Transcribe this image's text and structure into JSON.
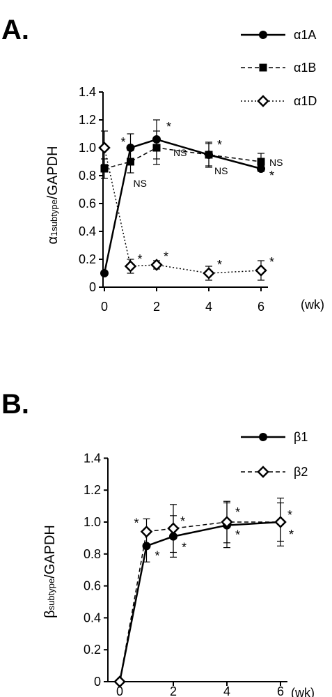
{
  "chart_data": [
    {
      "panel": "A.",
      "type": "line",
      "ylabel_main": "α",
      "ylabel_sub": "1subtype",
      "ylabel_rest": "/GAPDH",
      "xunit": "(wk)",
      "x": [
        0,
        1,
        2,
        4,
        6
      ],
      "xlabels": [
        "0",
        "2",
        "4",
        "6"
      ],
      "xticks": [
        0,
        2,
        4,
        6
      ],
      "yticks": [
        0,
        0.2,
        0.4,
        0.6,
        0.8,
        1.0,
        1.2,
        1.4
      ],
      "ytick_labels": [
        "0",
        "0.2",
        "0.4",
        "0.6",
        "0.8",
        "1.0",
        "1.2",
        "1.4"
      ],
      "ylim": [
        0,
        1.4
      ],
      "legend_position": "top-right",
      "series": [
        {
          "name": "α1A",
          "values": [
            0.1,
            1.0,
            1.06,
            0.95,
            0.85
          ],
          "errors": [
            0,
            0.1,
            0.14,
            0.09,
            0.02
          ],
          "marker": "circle-filled",
          "line": "solid",
          "color": "#000000",
          "annotations": [
            "",
            "*",
            "*",
            "*",
            "*"
          ]
        },
        {
          "name": "α1B",
          "values": [
            0.85,
            0.9,
            1.0,
            0.95,
            0.9
          ],
          "errors": [
            0.07,
            0.08,
            0.12,
            0.08,
            0.06
          ],
          "marker": "square-filled",
          "line": "dashed",
          "color": "#000000",
          "annotations": [
            "",
            "NS",
            "NS",
            "NS",
            "NS"
          ]
        },
        {
          "name": "α1D",
          "values": [
            1.0,
            0.15,
            0.16,
            0.1,
            0.12
          ],
          "errors": [
            0.12,
            0.05,
            0.03,
            0.05,
            0.07
          ],
          "marker": "diamond-open",
          "line": "dotted",
          "color": "#000000",
          "annotations": [
            "",
            "*",
            "*",
            "*",
            "*"
          ]
        }
      ]
    },
    {
      "panel": "B.",
      "type": "line",
      "ylabel_main": "β",
      "ylabel_sub": "subtype",
      "ylabel_rest": "/GAPDH",
      "xunit": "(wk)",
      "x": [
        0,
        1,
        2,
        4,
        6
      ],
      "xlabels": [
        "0",
        "2",
        "4",
        "6"
      ],
      "xticks": [
        0,
        2,
        4,
        6
      ],
      "yticks": [
        0,
        0.2,
        0.4,
        0.6,
        0.8,
        1.0,
        1.2,
        1.4
      ],
      "ytick_labels": [
        "0",
        "0.2",
        "0.4",
        "0.6",
        "0.8",
        "1.0",
        "1.2",
        "1.4"
      ],
      "ylim": [
        0,
        1.4
      ],
      "legend_position": "top-right",
      "series": [
        {
          "name": "β1",
          "values": [
            0,
            0.85,
            0.91,
            0.98,
            1.0
          ],
          "errors": [
            0,
            0.1,
            0.13,
            0.14,
            0.15
          ],
          "marker": "circle-filled",
          "line": "solid",
          "color": "#000000",
          "annotations": [
            "",
            "*",
            "*",
            "*",
            "*"
          ]
        },
        {
          "name": "β2",
          "values": [
            0,
            0.94,
            0.96,
            1.0,
            1.0
          ],
          "errors": [
            0,
            0.08,
            0.15,
            0.13,
            0.12
          ],
          "marker": "diamond-open",
          "line": "dashed",
          "color": "#000000",
          "annotations": [
            "",
            "*",
            "*",
            "*",
            "*"
          ]
        }
      ]
    }
  ]
}
